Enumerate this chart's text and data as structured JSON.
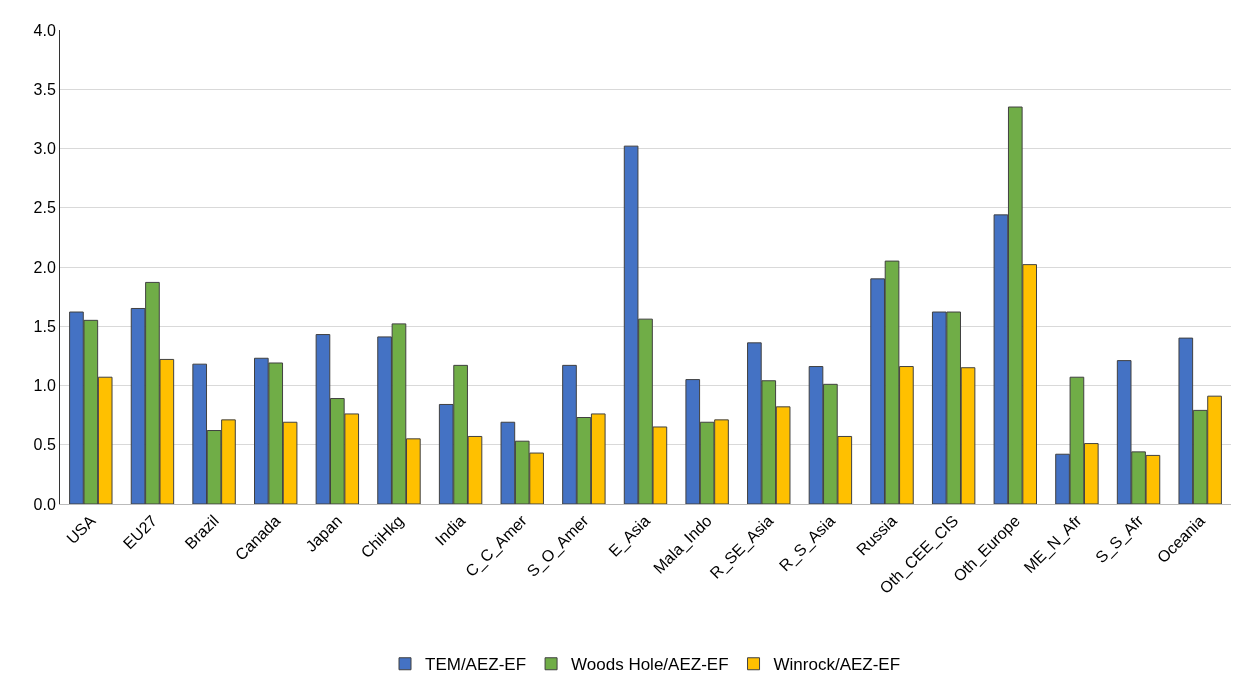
{
  "chart_data": {
    "type": "bar",
    "categories": [
      "USA",
      "EU27",
      "Brazil",
      "Canada",
      "Japan",
      "ChiHkg",
      "India",
      "C_C_Amer",
      "S_O_Amer",
      "E_Asia",
      "Mala_Indo",
      "R_SE_Asia",
      "R_S_Asia",
      "Russia",
      "Oth_CEE_CIS",
      "Oth_Europe",
      "ME_N_Afr",
      "S_S_Afr",
      "Oceania"
    ],
    "series": [
      {
        "name": "TEM/AEZ-EF",
        "color": "#4472c4",
        "values": [
          1.62,
          1.65,
          1.18,
          1.23,
          1.43,
          1.41,
          0.84,
          0.69,
          1.17,
          3.02,
          1.05,
          1.36,
          1.16,
          1.9,
          1.62,
          2.44,
          0.42,
          1.21,
          1.4
        ]
      },
      {
        "name": "Woods Hole/AEZ-EF",
        "color": "#70ad47",
        "values": [
          1.55,
          1.87,
          0.62,
          1.19,
          0.89,
          1.52,
          1.17,
          0.53,
          0.73,
          1.56,
          0.69,
          1.04,
          1.01,
          2.05,
          1.62,
          3.35,
          1.07,
          0.44,
          0.79
        ]
      },
      {
        "name": "Winrock/AEZ-EF",
        "color": "#ffc000",
        "values": [
          1.07,
          1.22,
          0.71,
          0.69,
          0.76,
          0.55,
          0.57,
          0.43,
          0.76,
          0.65,
          0.71,
          0.82,
          0.57,
          1.16,
          1.15,
          2.02,
          0.51,
          0.41,
          0.91
        ]
      }
    ],
    "ylim": [
      0,
      4
    ],
    "yticks": [
      {
        "value": 0,
        "label": "0.0"
      },
      0.5,
      {
        "value": 1,
        "label": "1.0"
      },
      1.5,
      {
        "value": 2,
        "label": "2.0"
      },
      2.5,
      {
        "value": 3,
        "label": "3.0"
      },
      3.5,
      {
        "value": 4,
        "label": "4.0"
      }
    ],
    "grid": "y",
    "legend": "bottom"
  }
}
